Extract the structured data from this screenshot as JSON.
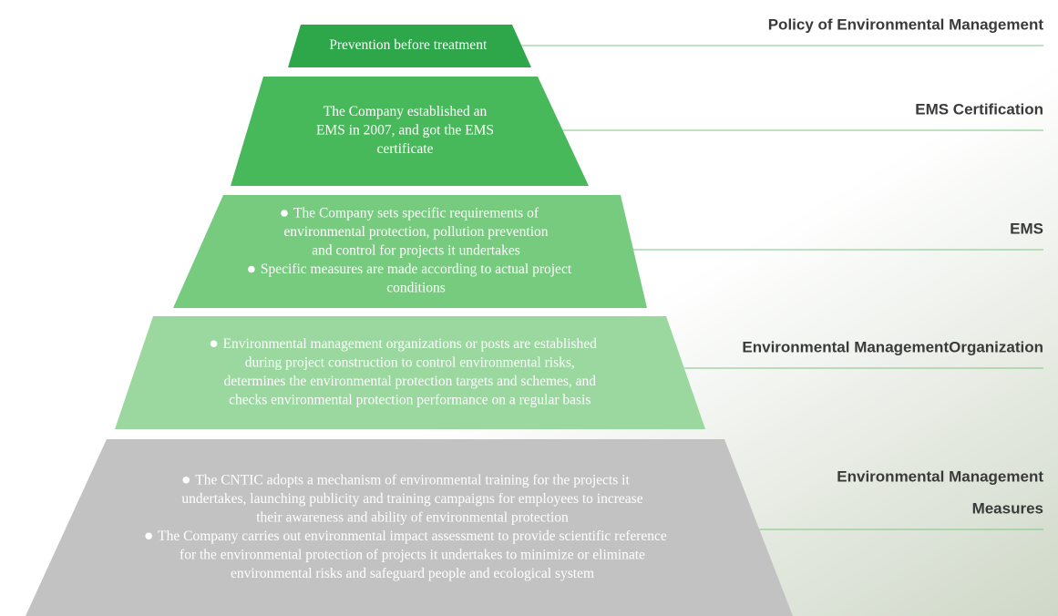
{
  "levels": [
    {
      "label": [
        "Policy of Environmental Management"
      ],
      "bullets": false,
      "paragraphs": [
        [
          "Prevention before treatment"
        ]
      ]
    },
    {
      "label": [
        "EMS Certification"
      ],
      "bullets": false,
      "paragraphs": [
        [
          "The Company established an",
          "EMS in 2007, and got the EMS",
          "certificate"
        ]
      ]
    },
    {
      "label": [
        "EMS"
      ],
      "bullets": true,
      "paragraphs": [
        [
          "The Company sets specific requirements of",
          "environmental protection, pollution prevention",
          "and control for projects it undertakes"
        ],
        [
          "Specific measures are made according to actual project",
          "conditions"
        ]
      ]
    },
    {
      "label": [
        "Environmental ManagementOrganization"
      ],
      "bullets": true,
      "paragraphs": [
        [
          "Environmental management organizations or posts are established",
          "during project construction to control environmental risks,",
          "determines the environmental protection targets and schemes, and",
          "checks environmental protection performance on a regular basis"
        ]
      ]
    },
    {
      "label": [
        "Environmental Management",
        "Measures"
      ],
      "bullets": true,
      "paragraphs": [
        [
          "The CNTIC adopts a mechanism of environmental training for the projects it",
          "undertakes, launching publicity and training campaigns for employees to increase",
          "their awareness and ability of environmental protection"
        ],
        [
          "The Company carries out environmental impact assessment to provide scientific reference",
          "for the environmental protection of projects it undertakes to minimize or eliminate",
          "environmental risks and safeguard people and ecological system"
        ]
      ]
    }
  ]
}
